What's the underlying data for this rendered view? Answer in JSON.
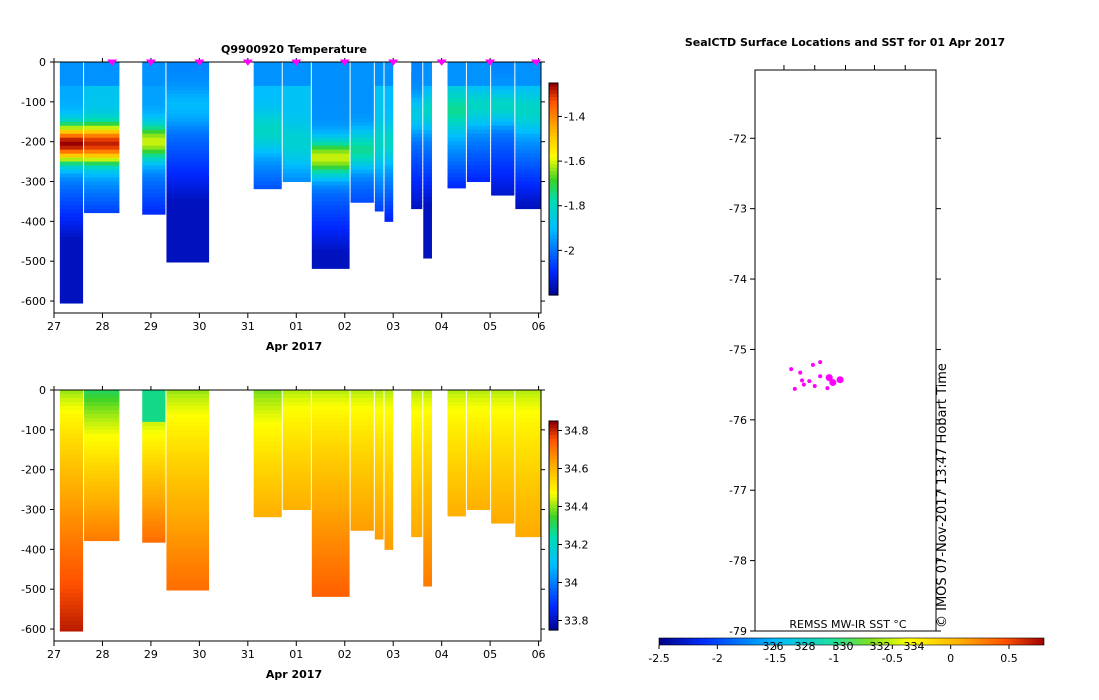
{
  "chart_data": [
    {
      "type": "heatmap",
      "title": "Q9900920  Temperature",
      "xlabel": "Apr 2017",
      "ylabel": "",
      "x_tick_labels": [
        "27",
        "28",
        "29",
        "30",
        "31",
        "01",
        "02",
        "03",
        "04",
        "05",
        "06"
      ],
      "y_tick_labels": [
        "0",
        "-100",
        "-200",
        "-300",
        "-400",
        "-500",
        "-600"
      ],
      "ylim": [
        -630,
        0
      ],
      "colorbar_ticks": [
        "-1.4",
        "-1.6",
        "-1.8",
        "-2"
      ],
      "colorbar_range": [
        -2.2,
        -1.25
      ],
      "markers_color": "#ff00ff",
      "profiles": [
        {
          "x": [
            27.1,
            27.6
          ],
          "maxDepth": 605,
          "peakValue": -1.25,
          "peakDepth": 205
        },
        {
          "x": [
            27.6,
            28.35
          ],
          "maxDepth": 378,
          "peakValue": -1.28,
          "peakDepth": 205
        },
        {
          "x": [
            28.8,
            29.3
          ],
          "maxDepth": 382,
          "peakValue": -1.6,
          "peakDepth": 200
        },
        {
          "x": [
            29.3,
            30.2
          ],
          "maxDepth": 502,
          "peakValue": -1.9,
          "peakDepth": 110
        },
        {
          "x": [
            31.1,
            31.7
          ],
          "maxDepth": 318,
          "peakValue": -1.8,
          "peakDepth": 170
        },
        {
          "x": [
            31.7,
            32.3
          ],
          "maxDepth": 300,
          "peakValue": -1.82,
          "peakDepth": 200
        },
        {
          "x": [
            32.3,
            33.1
          ],
          "maxDepth": 518,
          "peakValue": -1.6,
          "peakDepth": 240
        },
        {
          "x": [
            33.1,
            33.6
          ],
          "maxDepth": 352,
          "peakValue": -1.75,
          "peakDepth": 220
        },
        {
          "x": [
            33.6,
            33.8
          ],
          "maxDepth": 374,
          "peakValue": -1.8,
          "peakDepth": 200
        },
        {
          "x": [
            33.8,
            34.0
          ],
          "maxDepth": 400,
          "peakValue": -1.8,
          "peakDepth": 200
        },
        {
          "x": [
            34.35,
            34.6
          ],
          "maxDepth": 368,
          "peakValue": -1.85,
          "peakDepth": 130
        },
        {
          "x": [
            34.6,
            34.8
          ],
          "maxDepth": 492,
          "peakValue": -1.8,
          "peakDepth": 120
        },
        {
          "x": [
            35.1,
            35.5
          ],
          "maxDepth": 316,
          "peakValue": -1.75,
          "peakDepth": 120
        },
        {
          "x": [
            35.5,
            36.0
          ],
          "maxDepth": 300,
          "peakValue": -1.8,
          "peakDepth": 110
        },
        {
          "x": [
            36.0,
            36.5
          ],
          "maxDepth": 334,
          "peakValue": -1.8,
          "peakDepth": 110
        },
        {
          "x": [
            36.5,
            37.05
          ],
          "maxDepth": 368,
          "peakValue": -1.8,
          "peakDepth": 120
        }
      ],
      "gaps": [
        {
          "x": [
            34.0,
            34.35
          ],
          "maxDepth": 22
        },
        {
          "x": [
            34.8,
            35.1
          ],
          "maxDepth": 180
        }
      ],
      "marker_days": [
        28.2,
        29.0,
        30.0,
        31.0,
        32.0,
        33.0,
        34.0,
        35.0,
        36.0,
        37.0
      ]
    },
    {
      "type": "heatmap",
      "title": "",
      "xlabel": "Apr 2017",
      "ylabel": "",
      "x_tick_labels": [
        "27",
        "28",
        "29",
        "30",
        "31",
        "01",
        "02",
        "03",
        "04",
        "05",
        "06"
      ],
      "y_tick_labels": [
        "0",
        "-100",
        "-200",
        "-300",
        "-400",
        "-500",
        "-600"
      ],
      "ylim": [
        -630,
        0
      ],
      "colorbar_ticks": [
        "34.8",
        "34.6",
        "34.4",
        "34.2",
        "34",
        "33.8"
      ],
      "colorbar_range": [
        33.75,
        34.85
      ],
      "profiles": [
        {
          "x": [
            27.1,
            27.6
          ],
          "maxDepth": 605,
          "top": 34.4,
          "bottom": 34.82
        },
        {
          "x": [
            27.6,
            28.35
          ],
          "maxDepth": 378,
          "top": 34.3,
          "bottom": 34.7
        },
        {
          "x": [
            28.8,
            29.3
          ],
          "maxDepth": 382,
          "top": 34.3,
          "bottom": 34.72,
          "topBlock": {
            "depth": 85,
            "value": 34.28
          }
        },
        {
          "x": [
            29.3,
            30.2
          ],
          "maxDepth": 502,
          "top": 34.4,
          "bottom": 34.72
        },
        {
          "x": [
            31.1,
            31.7
          ],
          "maxDepth": 318,
          "top": 34.38,
          "bottom": 34.62
        },
        {
          "x": [
            31.7,
            32.3
          ],
          "maxDepth": 300,
          "top": 34.42,
          "bottom": 34.62
        },
        {
          "x": [
            32.3,
            33.1
          ],
          "maxDepth": 518,
          "top": 34.42,
          "bottom": 34.74
        },
        {
          "x": [
            33.1,
            33.6
          ],
          "maxDepth": 352,
          "top": 34.42,
          "bottom": 34.65
        },
        {
          "x": [
            33.6,
            33.8
          ],
          "maxDepth": 374,
          "top": 34.42,
          "bottom": 34.65
        },
        {
          "x": [
            33.8,
            34.0
          ],
          "maxDepth": 400,
          "top": 34.42,
          "bottom": 34.65
        },
        {
          "x": [
            34.35,
            34.6
          ],
          "maxDepth": 368,
          "top": 34.42,
          "bottom": 34.63
        },
        {
          "x": [
            34.6,
            34.8
          ],
          "maxDepth": 492,
          "top": 34.42,
          "bottom": 34.7
        },
        {
          "x": [
            35.1,
            35.5
          ],
          "maxDepth": 316,
          "top": 34.42,
          "bottom": 34.62
        },
        {
          "x": [
            35.5,
            36.0
          ],
          "maxDepth": 300,
          "top": 34.42,
          "bottom": 34.62
        },
        {
          "x": [
            36.0,
            36.5
          ],
          "maxDepth": 334,
          "top": 34.42,
          "bottom": 34.63
        },
        {
          "x": [
            36.5,
            37.05
          ],
          "maxDepth": 368,
          "top": 34.42,
          "bottom": 34.63
        }
      ],
      "gaps": [
        {
          "x": [
            34.0,
            34.35
          ],
          "maxDepth": 22
        },
        {
          "x": [
            34.8,
            35.1
          ],
          "maxDepth": 180
        }
      ]
    },
    {
      "type": "scatter",
      "title": "SealCTD Surface Locations and SST for 01 Apr 2017",
      "xlabel": "",
      "ylabel": "",
      "y_tick_labels": [
        "-72",
        "-73",
        "-74",
        "-75",
        "-76",
        "-77",
        "-78",
        "-79"
      ],
      "ylim": [
        -79,
        -71.03
      ],
      "points": [
        {
          "x": 0.2,
          "y": -75.28
        },
        {
          "x": 0.25,
          "y": -75.33
        },
        {
          "x": 0.36,
          "y": -75.18
        },
        {
          "x": 0.41,
          "y": -75.4
        },
        {
          "x": 0.43,
          "y": -75.47
        },
        {
          "x": 0.47,
          "y": -75.43
        },
        {
          "x": 0.3,
          "y": -75.45
        },
        {
          "x": 0.26,
          "y": -75.44
        },
        {
          "x": 0.4,
          "y": -75.55
        },
        {
          "x": 0.22,
          "y": -75.56
        },
        {
          "x": 0.27,
          "y": -75.5
        },
        {
          "x": 0.33,
          "y": -75.52
        },
        {
          "x": 0.32,
          "y": -75.22
        },
        {
          "x": 0.36,
          "y": -75.38
        }
      ],
      "sst_source": "REMSS MW-IR SST °C",
      "sst_ticks": [
        "-2.5",
        "-2",
        "-1.5",
        "-1",
        "-0.5",
        "0",
        "0.5"
      ],
      "sst_range": [
        -2.5,
        0.8
      ],
      "sst_extra_ticks": [
        "326",
        "328",
        "330",
        "332",
        "334"
      ],
      "credit": "© IMOS 07-Nov-2017 13:47 Hobart Time"
    }
  ]
}
